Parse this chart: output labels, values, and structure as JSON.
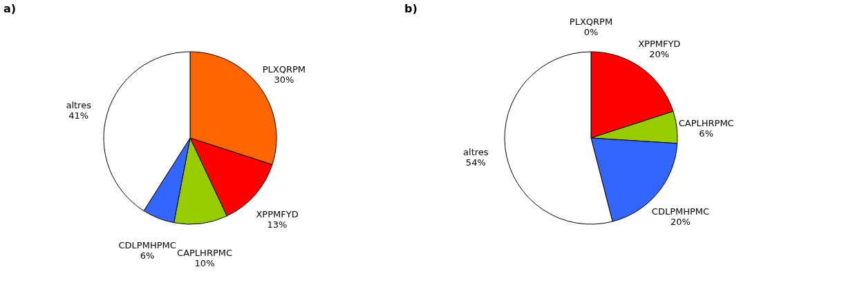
{
  "chart_data": [
    {
      "type": "pie",
      "title": "a)",
      "categories": [
        "PLXQRPM",
        "XPPMFYD",
        "CAPLHRPMC",
        "CDLPMHPMC",
        "altres"
      ],
      "values": [
        30,
        13,
        10,
        6,
        41
      ],
      "colors": [
        "#ff6600",
        "#ff0000",
        "#99cc00",
        "#3366ff",
        "#ffffff"
      ],
      "value_labels": [
        "30%",
        "13%",
        "10%",
        "6%",
        "41%"
      ]
    },
    {
      "type": "pie",
      "title": "b)",
      "categories": [
        "PLXQRPM",
        "XPPMFYD",
        "CAPLHRPMC",
        "CDLPMHPMC",
        "altres"
      ],
      "values": [
        0,
        20,
        6,
        20,
        54
      ],
      "colors": [
        "#ff6600",
        "#ff0000",
        "#99cc00",
        "#3366ff",
        "#ffffff"
      ],
      "value_labels": [
        "0%",
        "20%",
        "6%",
        "20%",
        "54%"
      ]
    }
  ]
}
